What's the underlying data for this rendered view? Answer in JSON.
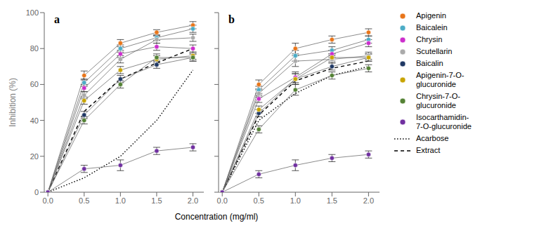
{
  "chart_data": [
    {
      "type": "line",
      "title": "a",
      "xlabel": "Concentration (mg/ml)",
      "ylabel": "Inhibition (%)",
      "x": [
        0,
        0.5,
        1.0,
        1.5,
        2.0
      ],
      "xlim": [
        -0.05,
        2.15
      ],
      "xticks": [
        {
          "value": 0,
          "label": "0.0"
        },
        0.5,
        {
          "value": 1.0,
          "label": "1.0"
        },
        1.5,
        {
          "value": 2.0,
          "label": "2.0"
        }
      ],
      "ylim": [
        0,
        100
      ],
      "yticks": [
        0,
        20,
        40,
        60,
        80,
        100
      ],
      "series": [
        {
          "name": "Apigenin",
          "color": "#E8751A",
          "marker": "circle",
          "values": [
            0,
            65,
            83,
            89,
            93
          ],
          "yerr": [
            0,
            2.5,
            2,
            1.5,
            2
          ]
        },
        {
          "name": "Baicalein",
          "color": "#4BACC6",
          "marker": "circle",
          "values": [
            0,
            61,
            80,
            86,
            91
          ],
          "yerr": [
            0,
            2,
            2,
            1.5,
            2
          ]
        },
        {
          "name": "Chrysin",
          "color": "#CC2ECC",
          "marker": "circle",
          "values": [
            0,
            58,
            77,
            81,
            80
          ],
          "yerr": [
            0,
            2,
            2,
            2,
            2
          ]
        },
        {
          "name": "Scutellarin",
          "color": "#AAAAAA",
          "marker": "circle",
          "values": [
            0,
            54,
            74,
            85,
            86
          ],
          "yerr": [
            0,
            2,
            2,
            2,
            2
          ]
        },
        {
          "name": "Baicalin",
          "color": "#1F3864",
          "marker": "circle",
          "values": [
            0,
            43,
            63,
            71,
            75
          ],
          "yerr": [
            0,
            2,
            2,
            2,
            2
          ]
        },
        {
          "name": "Apigenin-7-O-\nglucuronide",
          "color": "#C8A400",
          "marker": "circle",
          "values": [
            0,
            51,
            68,
            74,
            76
          ],
          "yerr": [
            0,
            2,
            2,
            2,
            2
          ]
        },
        {
          "name": "Chrysin-7-O-\nglucuronide",
          "color": "#548235",
          "marker": "circle",
          "values": [
            0,
            40,
            60,
            75,
            75
          ],
          "yerr": [
            0,
            2,
            2,
            2,
            2
          ]
        },
        {
          "name": "Isocarthamidin-\n7-O-glucuronide",
          "color": "#7030A0",
          "marker": "circle",
          "values": [
            0,
            13,
            15,
            23,
            25
          ],
          "yerr": [
            0,
            2,
            3,
            2,
            2
          ]
        },
        {
          "name": "Acarbose",
          "color": "#000000",
          "line_style": "dotted",
          "values": [
            0,
            8,
            20,
            40,
            68
          ]
        },
        {
          "name": "Extract",
          "color": "#000000",
          "line_style": "dashed",
          "values": [
            0,
            45,
            63,
            72,
            80
          ]
        }
      ]
    },
    {
      "type": "line",
      "title": "b",
      "tick_labels": "x",
      "legend": "right",
      "x": [
        0,
        0.5,
        1.0,
        1.5,
        2.0
      ],
      "xlim": [
        -0.05,
        2.15
      ],
      "xticks": [
        {
          "value": 0,
          "label": "0.0"
        },
        0.5,
        {
          "value": 1.0,
          "label": "1.0"
        },
        1.5,
        {
          "value": 2.0,
          "label": "2.0"
        }
      ],
      "ylim": [
        0,
        100
      ],
      "yticks": [
        0,
        20,
        40,
        60,
        80,
        100
      ],
      "series": [
        {
          "name": "Apigenin",
          "color": "#E8751A",
          "marker": "circle",
          "values": [
            0,
            60,
            80,
            85,
            89
          ],
          "yerr": [
            0,
            2.5,
            3,
            2,
            2
          ]
        },
        {
          "name": "Baicalein",
          "color": "#4BACC6",
          "marker": "circle",
          "values": [
            0,
            57,
            76,
            79,
            85
          ],
          "yerr": [
            0,
            2,
            3,
            2,
            2
          ]
        },
        {
          "name": "Chrysin",
          "color": "#CC2ECC",
          "marker": "circle",
          "values": [
            0,
            52,
            64,
            77,
            83
          ],
          "yerr": [
            0,
            2,
            3,
            2,
            2
          ]
        },
        {
          "name": "Scutellarin",
          "color": "#AAAAAA",
          "marker": "circle",
          "values": [
            0,
            55,
            73,
            74,
            76
          ],
          "yerr": [
            0,
            2,
            3,
            2,
            2
          ]
        },
        {
          "name": "Baicalin",
          "color": "#1F3864",
          "marker": "circle",
          "values": [
            0,
            44,
            63,
            70,
            75
          ],
          "yerr": [
            0,
            2,
            3,
            2,
            2
          ]
        },
        {
          "name": "Apigenin-7-O-\nglucuronide",
          "color": "#C8A400",
          "marker": "circle",
          "values": [
            0,
            46,
            63,
            75,
            75
          ],
          "yerr": [
            0,
            2,
            3,
            2,
            2
          ]
        },
        {
          "name": "Chrysin-7-O-\nglucuronide",
          "color": "#548235",
          "marker": "circle",
          "values": [
            0,
            35,
            57,
            65,
            69
          ],
          "yerr": [
            0,
            2,
            3,
            2,
            2
          ]
        },
        {
          "name": "Isocarthamidin-\n7-O-glucuronide",
          "color": "#7030A0",
          "marker": "circle",
          "values": [
            0,
            10,
            15,
            19,
            21
          ],
          "yerr": [
            0,
            2,
            3,
            2,
            2
          ]
        },
        {
          "name": "Acarbose",
          "color": "#000000",
          "line_style": "dotted",
          "values": [
            0,
            40,
            55,
            65,
            70
          ]
        },
        {
          "name": "Extract",
          "color": "#000000",
          "line_style": "dashed",
          "values": [
            0,
            43,
            62,
            69,
            73
          ]
        }
      ]
    }
  ]
}
